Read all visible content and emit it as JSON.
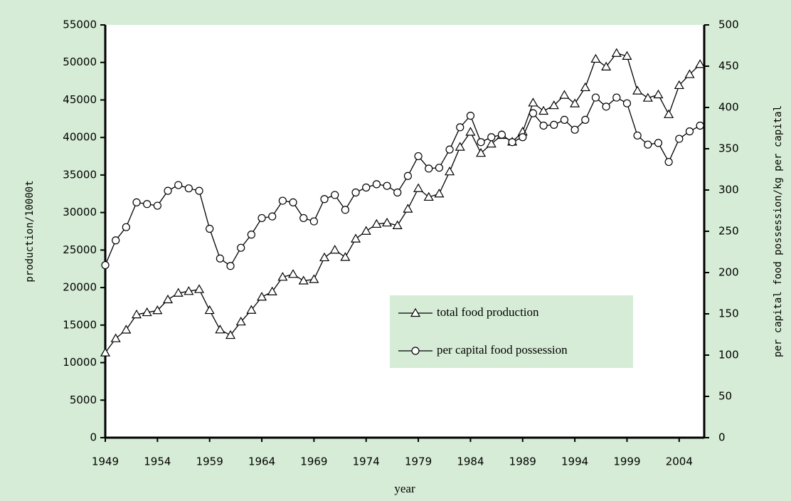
{
  "chart_data": {
    "type": "line",
    "x_label": "year",
    "y_label": "production/10000t",
    "y2_label": "per capital food possession/kg per capital",
    "x": [
      1949,
      1950,
      1951,
      1952,
      1953,
      1954,
      1955,
      1956,
      1957,
      1958,
      1959,
      1960,
      1961,
      1962,
      1963,
      1964,
      1965,
      1966,
      1967,
      1968,
      1969,
      1970,
      1971,
      1972,
      1973,
      1974,
      1975,
      1976,
      1977,
      1978,
      1979,
      1980,
      1981,
      1982,
      1983,
      1984,
      1985,
      1986,
      1987,
      1988,
      1989,
      1990,
      1991,
      1992,
      1993,
      1994,
      1995,
      1996,
      1997,
      1998,
      1999,
      2000,
      2001,
      2002,
      2003,
      2004,
      2005,
      2006
    ],
    "series": [
      {
        "name": "total food production",
        "color": "#000000",
        "marker": "triangle",
        "axis": "y",
        "values": [
          11318,
          13213,
          14369,
          16392,
          16683,
          16952,
          18394,
          19275,
          19505,
          19765,
          16968,
          14385,
          13650,
          15441,
          17000,
          18750,
          19453,
          21400,
          21782,
          20906,
          21097,
          23996,
          25014,
          24048,
          26494,
          27527,
          28452,
          28631,
          28273,
          30477,
          33212,
          32056,
          32502,
          35450,
          38728,
          40731,
          37911,
          39151,
          40298,
          39408,
          40755,
          44624,
          43529,
          44266,
          45649,
          44510,
          46662,
          50454,
          49417,
          51230,
          50839,
          46218,
          45264,
          45706,
          43070,
          46947,
          48402,
          49746
        ]
      },
      {
        "name": "per capital food possession",
        "color": "#000000",
        "marker": "circle",
        "axis": "y2",
        "values": [
          209,
          239,
          255,
          285,
          283,
          281,
          299,
          306,
          302,
          299,
          253,
          217,
          208,
          230,
          246,
          266,
          268,
          287,
          285,
          266,
          262,
          289,
          294,
          276,
          297,
          303,
          307,
          305,
          297,
          317,
          341,
          326,
          327,
          349,
          376,
          390,
          358,
          364,
          367,
          358,
          364,
          393,
          378,
          379,
          385,
          373,
          385,
          412,
          401,
          412,
          405,
          366,
          355,
          357,
          334,
          362,
          371,
          378
        ]
      }
    ],
    "xlim": [
      1949,
      2006.4
    ],
    "xticks": [
      1949,
      1954,
      1959,
      1964,
      1969,
      1974,
      1979,
      1984,
      1989,
      1994,
      1999,
      2004
    ],
    "ylim": [
      0,
      55000
    ],
    "yticks": [
      0,
      5000,
      10000,
      15000,
      20000,
      25000,
      30000,
      35000,
      40000,
      45000,
      50000,
      55000
    ],
    "y2lim": [
      0,
      500
    ],
    "y2ticks": [
      0,
      50,
      100,
      150,
      200,
      250,
      300,
      350,
      400,
      450,
      500
    ],
    "grid": false,
    "legend": "center"
  }
}
